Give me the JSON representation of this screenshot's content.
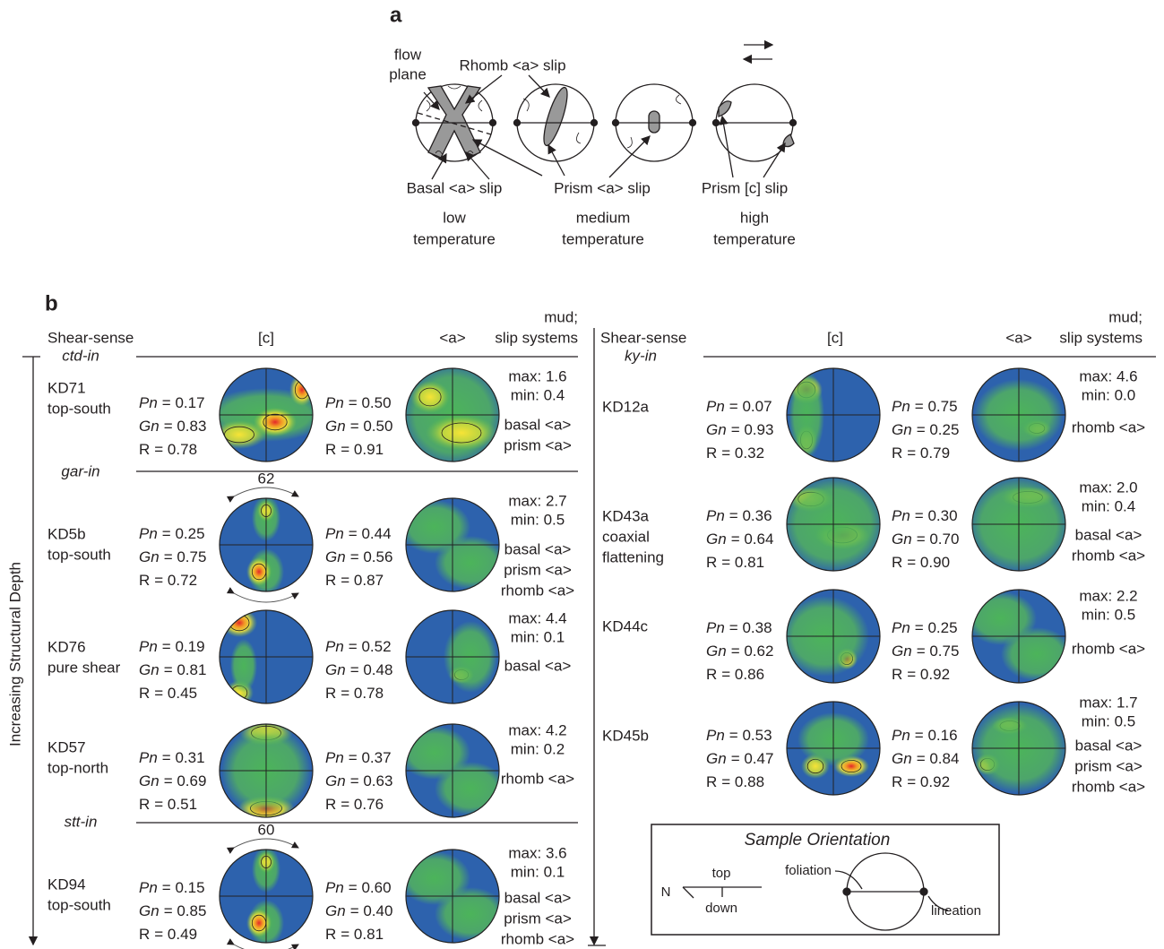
{
  "panel_a": {
    "label": "a",
    "flow_plane": [
      "flow",
      "plane"
    ],
    "rhomb": "Rhomb <a> slip",
    "basal": "Basal <a> slip",
    "prism_a": "Prism <a> slip",
    "prism_c": "Prism [c] slip",
    "temperatures": [
      [
        "low",
        "temperature"
      ],
      [
        "medium",
        "temperature"
      ],
      [
        "high",
        "temperature"
      ]
    ]
  },
  "panel_b": {
    "label": "b",
    "y_axis": "Increasing Structural Depth",
    "left": {
      "headers": {
        "shear_sense": "Shear-sense",
        "c": "[c]",
        "a": "<a>",
        "mud": "mud;",
        "slip": "slip systems"
      },
      "zones": [
        "ctd-in",
        "gar-in",
        "stt-in"
      ],
      "samples": [
        {
          "name": [
            "KD71",
            "top-south"
          ],
          "c": [
            {
              "sym": "Pn",
              "val": "= 0.17"
            },
            {
              "sym": "Gn",
              "val": "= 0.83"
            },
            {
              "sym": "R",
              "val": "= 0.78"
            }
          ],
          "a": [
            {
              "sym": "Pn",
              "val": "= 0.50"
            },
            {
              "sym": "Gn",
              "val": "= 0.50"
            },
            {
              "sym": "R",
              "val": "= 0.91"
            }
          ],
          "max": "max: 1.6",
          "min": "min: 0.4",
          "slip": [
            "basal <a>",
            "prism <a>"
          ]
        },
        {
          "name": [
            "KD5b",
            "top-south"
          ],
          "c": [
            {
              "sym": "Pn",
              "val": "= 0.25"
            },
            {
              "sym": "Gn",
              "val": "= 0.75"
            },
            {
              "sym": "R",
              "val": "= 0.72"
            }
          ],
          "a": [
            {
              "sym": "Pn",
              "val": "= 0.44"
            },
            {
              "sym": "Gn",
              "val": "= 0.56"
            },
            {
              "sym": "R",
              "val": "= 0.87"
            }
          ],
          "max": "max: 2.7",
          "min": "min: 0.5",
          "slip": [
            "basal <a>",
            "prism <a>",
            "rhomb <a>"
          ],
          "angle": 62
        },
        {
          "name": [
            "KD76",
            "pure shear"
          ],
          "c": [
            {
              "sym": "Pn",
              "val": "= 0.19"
            },
            {
              "sym": "Gn",
              "val": "= 0.81"
            },
            {
              "sym": "R",
              "val": "= 0.45"
            }
          ],
          "a": [
            {
              "sym": "Pn",
              "val": "= 0.52"
            },
            {
              "sym": "Gn",
              "val": "= 0.48"
            },
            {
              "sym": "R",
              "val": "= 0.78"
            }
          ],
          "max": "max: 4.4",
          "min": "min: 0.1",
          "slip": [
            "basal <a>"
          ]
        },
        {
          "name": [
            "KD57",
            "top-north"
          ],
          "c": [
            {
              "sym": "Pn",
              "val": "= 0.31"
            },
            {
              "sym": "Gn",
              "val": "= 0.69"
            },
            {
              "sym": "R",
              "val": "= 0.51"
            }
          ],
          "a": [
            {
              "sym": "Pn",
              "val": "= 0.37"
            },
            {
              "sym": "Gn",
              "val": "= 0.63"
            },
            {
              "sym": "R",
              "val": "= 0.76"
            }
          ],
          "max": "max: 4.2",
          "min": "min: 0.2",
          "slip": [
            "rhomb <a>"
          ]
        },
        {
          "name": [
            "KD94",
            "top-south"
          ],
          "c": [
            {
              "sym": "Pn",
              "val": "= 0.15"
            },
            {
              "sym": "Gn",
              "val": "= 0.85"
            },
            {
              "sym": "R",
              "val": "= 0.49"
            }
          ],
          "a": [
            {
              "sym": "Pn",
              "val": "= 0.60"
            },
            {
              "sym": "Gn",
              "val": "= 0.40"
            },
            {
              "sym": "R",
              "val": "= 0.81"
            }
          ],
          "max": "max: 3.6",
          "min": "min: 0.1",
          "slip": [
            "basal <a>",
            "prism <a>",
            "rhomb <a>"
          ],
          "angle": 60
        }
      ]
    },
    "right": {
      "headers": {
        "shear_sense": "Shear-sense",
        "c": "[c]",
        "a": "<a>",
        "mud": "mud;",
        "slip": "slip systems"
      },
      "zones": [
        "ky-in"
      ],
      "samples": [
        {
          "name": [
            "KD12a"
          ],
          "c": [
            {
              "sym": "Pn",
              "val": "= 0.07"
            },
            {
              "sym": "Gn",
              "val": "= 0.93"
            },
            {
              "sym": "R",
              "val": "= 0.32"
            }
          ],
          "a": [
            {
              "sym": "Pn",
              "val": "= 0.75"
            },
            {
              "sym": "Gn",
              "val": "= 0.25"
            },
            {
              "sym": "R",
              "val": "= 0.79"
            }
          ],
          "max": "max: 4.6",
          "min": "min: 0.0",
          "slip": [
            "rhomb <a>"
          ]
        },
        {
          "name": [
            "KD43a",
            "coaxial",
            "flattening"
          ],
          "c": [
            {
              "sym": "Pn",
              "val": "= 0.36"
            },
            {
              "sym": "Gn",
              "val": "= 0.64"
            },
            {
              "sym": "R",
              "val": "= 0.81"
            }
          ],
          "a": [
            {
              "sym": "Pn",
              "val": "= 0.30"
            },
            {
              "sym": "Gn",
              "val": "= 0.70"
            },
            {
              "sym": "R",
              "val": "= 0.90"
            }
          ],
          "max": "max: 2.0",
          "min": "min: 0.4",
          "slip": [
            "basal <a>",
            "rhomb <a>"
          ]
        },
        {
          "name": [
            "KD44c"
          ],
          "c": [
            {
              "sym": "Pn",
              "val": "= 0.38"
            },
            {
              "sym": "Gn",
              "val": "= 0.62"
            },
            {
              "sym": "R",
              "val": "= 0.86"
            }
          ],
          "a": [
            {
              "sym": "Pn",
              "val": "= 0.25"
            },
            {
              "sym": "Gn",
              "val": "= 0.75"
            },
            {
              "sym": "R",
              "val": "= 0.92"
            }
          ],
          "max": "max: 2.2",
          "min": "min: 0.5",
          "slip": [
            "rhomb <a>"
          ]
        },
        {
          "name": [
            "KD45b"
          ],
          "c": [
            {
              "sym": "Pn",
              "val": "= 0.53"
            },
            {
              "sym": "Gn",
              "val": "= 0.47"
            },
            {
              "sym": "R",
              "val": "= 0.88"
            }
          ],
          "a": [
            {
              "sym": "Pn",
              "val": "= 0.16"
            },
            {
              "sym": "Gn",
              "val": "= 0.84"
            },
            {
              "sym": "R",
              "val": "= 0.92"
            }
          ],
          "max": "max: 1.7",
          "min": "min: 0.5",
          "slip": [
            "basal <a>",
            "prism <a>",
            "rhomb <a>"
          ]
        }
      ]
    },
    "orientation": {
      "title": "Sample Orientation",
      "n": "N",
      "top": "top",
      "down": "down",
      "foliation": "foliation",
      "lineation": "lineation"
    }
  }
}
